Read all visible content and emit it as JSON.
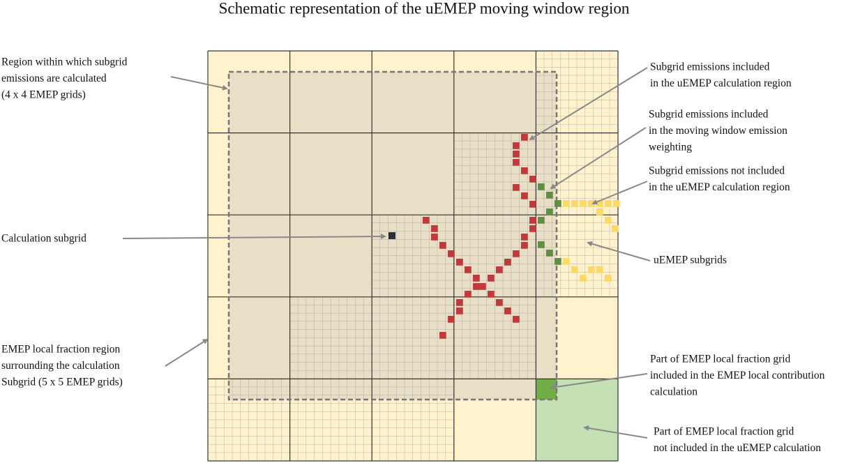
{
  "title": "Schematic representation of the uEMEP moving window region",
  "labels": [
    {
      "lines": [
        "Region within which subgrid",
        "emissions are calculated",
        "(4 x 4 EMEP grids)"
      ]
    },
    {
      "lines": [
        "Calculation  subgrid"
      ]
    },
    {
      "lines": [
        "EMEP local fraction region",
        "surrounding  the calculation",
        "Subgrid  (5 x 5 EMEP grids)"
      ]
    },
    {
      "lines": [
        "Subgrid emissions included",
        "in the uEMEP calculation  region"
      ]
    },
    {
      "lines": [
        "Subgrid emissions included",
        "in the moving window emission",
        "weighting"
      ]
    },
    {
      "lines": [
        "Subgrid emissions  not included",
        "in the uEMEP calculation  region"
      ]
    },
    {
      "lines": [
        "uEMEP subgrids"
      ]
    },
    {
      "lines": [
        "Part of EMEP local fraction grid",
        "included in the EMEP local contribution",
        "calculation"
      ]
    },
    {
      "lines": [
        "Part of EMEP local  fraction grid",
        "not included in the uEMEP calculation"
      ]
    }
  ]
}
